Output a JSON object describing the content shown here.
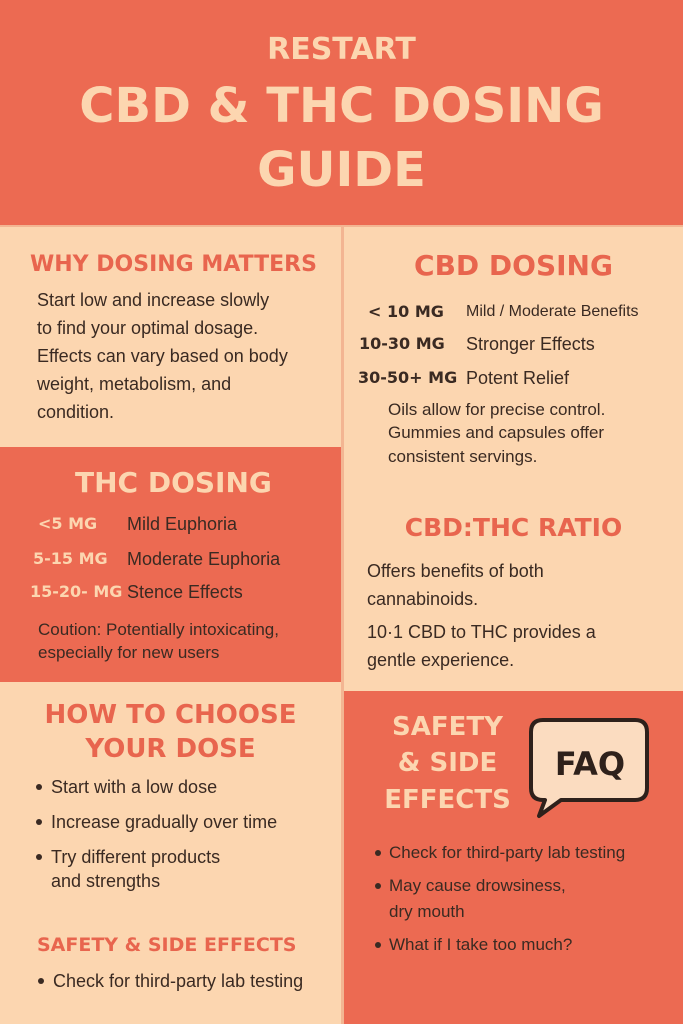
{
  "header": {
    "brand": "RESTART",
    "title_lines": [
      "CBD & THC DOSING",
      "GUIDE"
    ]
  },
  "why": {
    "heading": "WHY DOSING MATTERS",
    "lines": [
      "Start low and increase slowly",
      "to find your optimal dosage.",
      "Effects can vary based on body",
      "weight, metabolism, and",
      "condition."
    ]
  },
  "cbd": {
    "heading": "CBD DOSING",
    "rows": [
      [
        "< 10 MG",
        "Mild / Moderate Benefits"
      ],
      [
        "10-30 MG",
        "Stronger Effects"
      ],
      [
        "30-50+ MG",
        "Potent Relief"
      ]
    ],
    "lines": [
      "Oils allow for precise control.",
      "Gummies and capsules offer",
      "consistent servings."
    ]
  },
  "thc": {
    "heading": "THC DOSING",
    "rows": [
      [
        "<5 MG",
        "Mild Euphoria"
      ],
      [
        "5-15 MG",
        "Moderate Euphoria"
      ],
      [
        "15-20- MG",
        "Stence Effects"
      ]
    ],
    "lines": [
      "Coution: Potentially intoxicating,",
      "especially for new users"
    ]
  },
  "ratio": {
    "heading": "CBD:THC RATIO",
    "lines": [
      "Offers benefits of both",
      "cannabinoids.",
      "10·1 CBD to THC provides a",
      "gentle experience."
    ]
  },
  "choose": {
    "heading_lines": [
      "HOW TO CHOOSE",
      "YOUR DOSE"
    ],
    "bullets": [
      [
        "Start with a low dose"
      ],
      [
        "Increase gradually over time"
      ],
      [
        "Try different products",
        "and strengths"
      ]
    ]
  },
  "safety_left": {
    "heading": "SAFETY & SIDE EFFECTS",
    "bullets": [
      [
        "Check for third-party lab testing"
      ]
    ]
  },
  "safety_right": {
    "heading_lines": [
      "SAFETY",
      "& SIDE",
      "EFFECTS"
    ],
    "badge": "FAQ",
    "bullets": [
      [
        "Check for third-party lab testing"
      ],
      [
        "May cause drowsiness,",
        "dry mouth"
      ],
      [
        "What if I take too much?"
      ]
    ]
  }
}
